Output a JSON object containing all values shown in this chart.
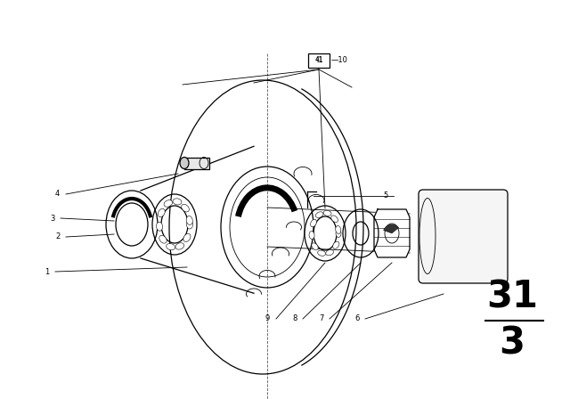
{
  "bg_color": "#ffffff",
  "line_color": "#000000",
  "fig_width": 6.4,
  "fig_height": 4.48,
  "dpi": 100,
  "callout_box_label": "41",
  "callout_number": "10"
}
